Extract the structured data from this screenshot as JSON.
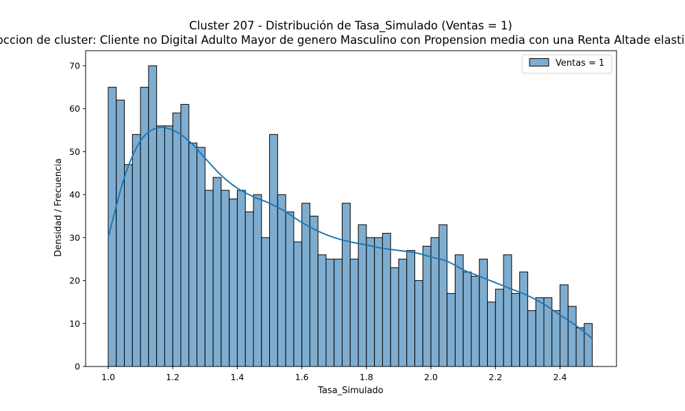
{
  "chart_data": {
    "type": "bar",
    "title": "Cluster 207 - Distribución de Tasa_Simulado (Ventas = 1)",
    "subtitle": "Descripccion de cluster: Cliente no Digital Adulto Mayor de genero Masculino con Propension media con una Renta Altade elasticidad Alta",
    "xlabel": "Tasa_Simulado",
    "ylabel": "Densidad / Frecuencia",
    "xlim": [
      0.93,
      2.575
    ],
    "ylim": [
      0,
      73.5
    ],
    "xticks": [
      1.0,
      1.2,
      1.4,
      1.6,
      1.8,
      2.0,
      2.2,
      2.4
    ],
    "xtick_labels": [
      "1.0",
      "1.2",
      "1.4",
      "1.6",
      "1.8",
      "2.0",
      "2.2",
      "2.4"
    ],
    "yticks": [
      0,
      10,
      20,
      30,
      40,
      50,
      60,
      70
    ],
    "ytick_labels": [
      "0",
      "10",
      "20",
      "30",
      "40",
      "50",
      "60",
      "70"
    ],
    "bin_start": 1.0,
    "bin_end": 2.5,
    "values": [
      65,
      62,
      47,
      54,
      65,
      70,
      56,
      56,
      59,
      61,
      52,
      51,
      41,
      44,
      41,
      39,
      41,
      36,
      40,
      30,
      54,
      40,
      36,
      29,
      38,
      35,
      26,
      25,
      25,
      38,
      25,
      33,
      30,
      30,
      31,
      23,
      25,
      27,
      20,
      28,
      30,
      33,
      17,
      26,
      22,
      21,
      25,
      15,
      18,
      26,
      17,
      22,
      13,
      16,
      16,
      13,
      19,
      14,
      9,
      10
    ],
    "kde": {
      "x": [
        1.0,
        1.05,
        1.1,
        1.15,
        1.2,
        1.25,
        1.3,
        1.35,
        1.4,
        1.45,
        1.5,
        1.55,
        1.6,
        1.65,
        1.7,
        1.75,
        1.8,
        1.85,
        1.9,
        1.95,
        2.0,
        2.05,
        2.1,
        2.15,
        2.2,
        2.25,
        2.3,
        2.35,
        2.4,
        2.45,
        2.5
      ],
      "y": [
        30,
        44,
        52.5,
        55.5,
        55,
        52.5,
        48.5,
        44.5,
        41.5,
        39.5,
        38,
        36,
        33.5,
        31.5,
        30,
        29,
        28.3,
        27.5,
        27,
        26.5,
        25.5,
        24.5,
        22.5,
        21,
        19.5,
        18,
        16.5,
        14.5,
        12,
        9.5,
        6.5
      ]
    },
    "legend": {
      "label": "Ventas = 1",
      "position": "top-right"
    },
    "colors": {
      "bar_fill": "#7fadd0",
      "bar_edge": "#000000",
      "kde_line": "#1f77b4"
    },
    "grid": false
  }
}
